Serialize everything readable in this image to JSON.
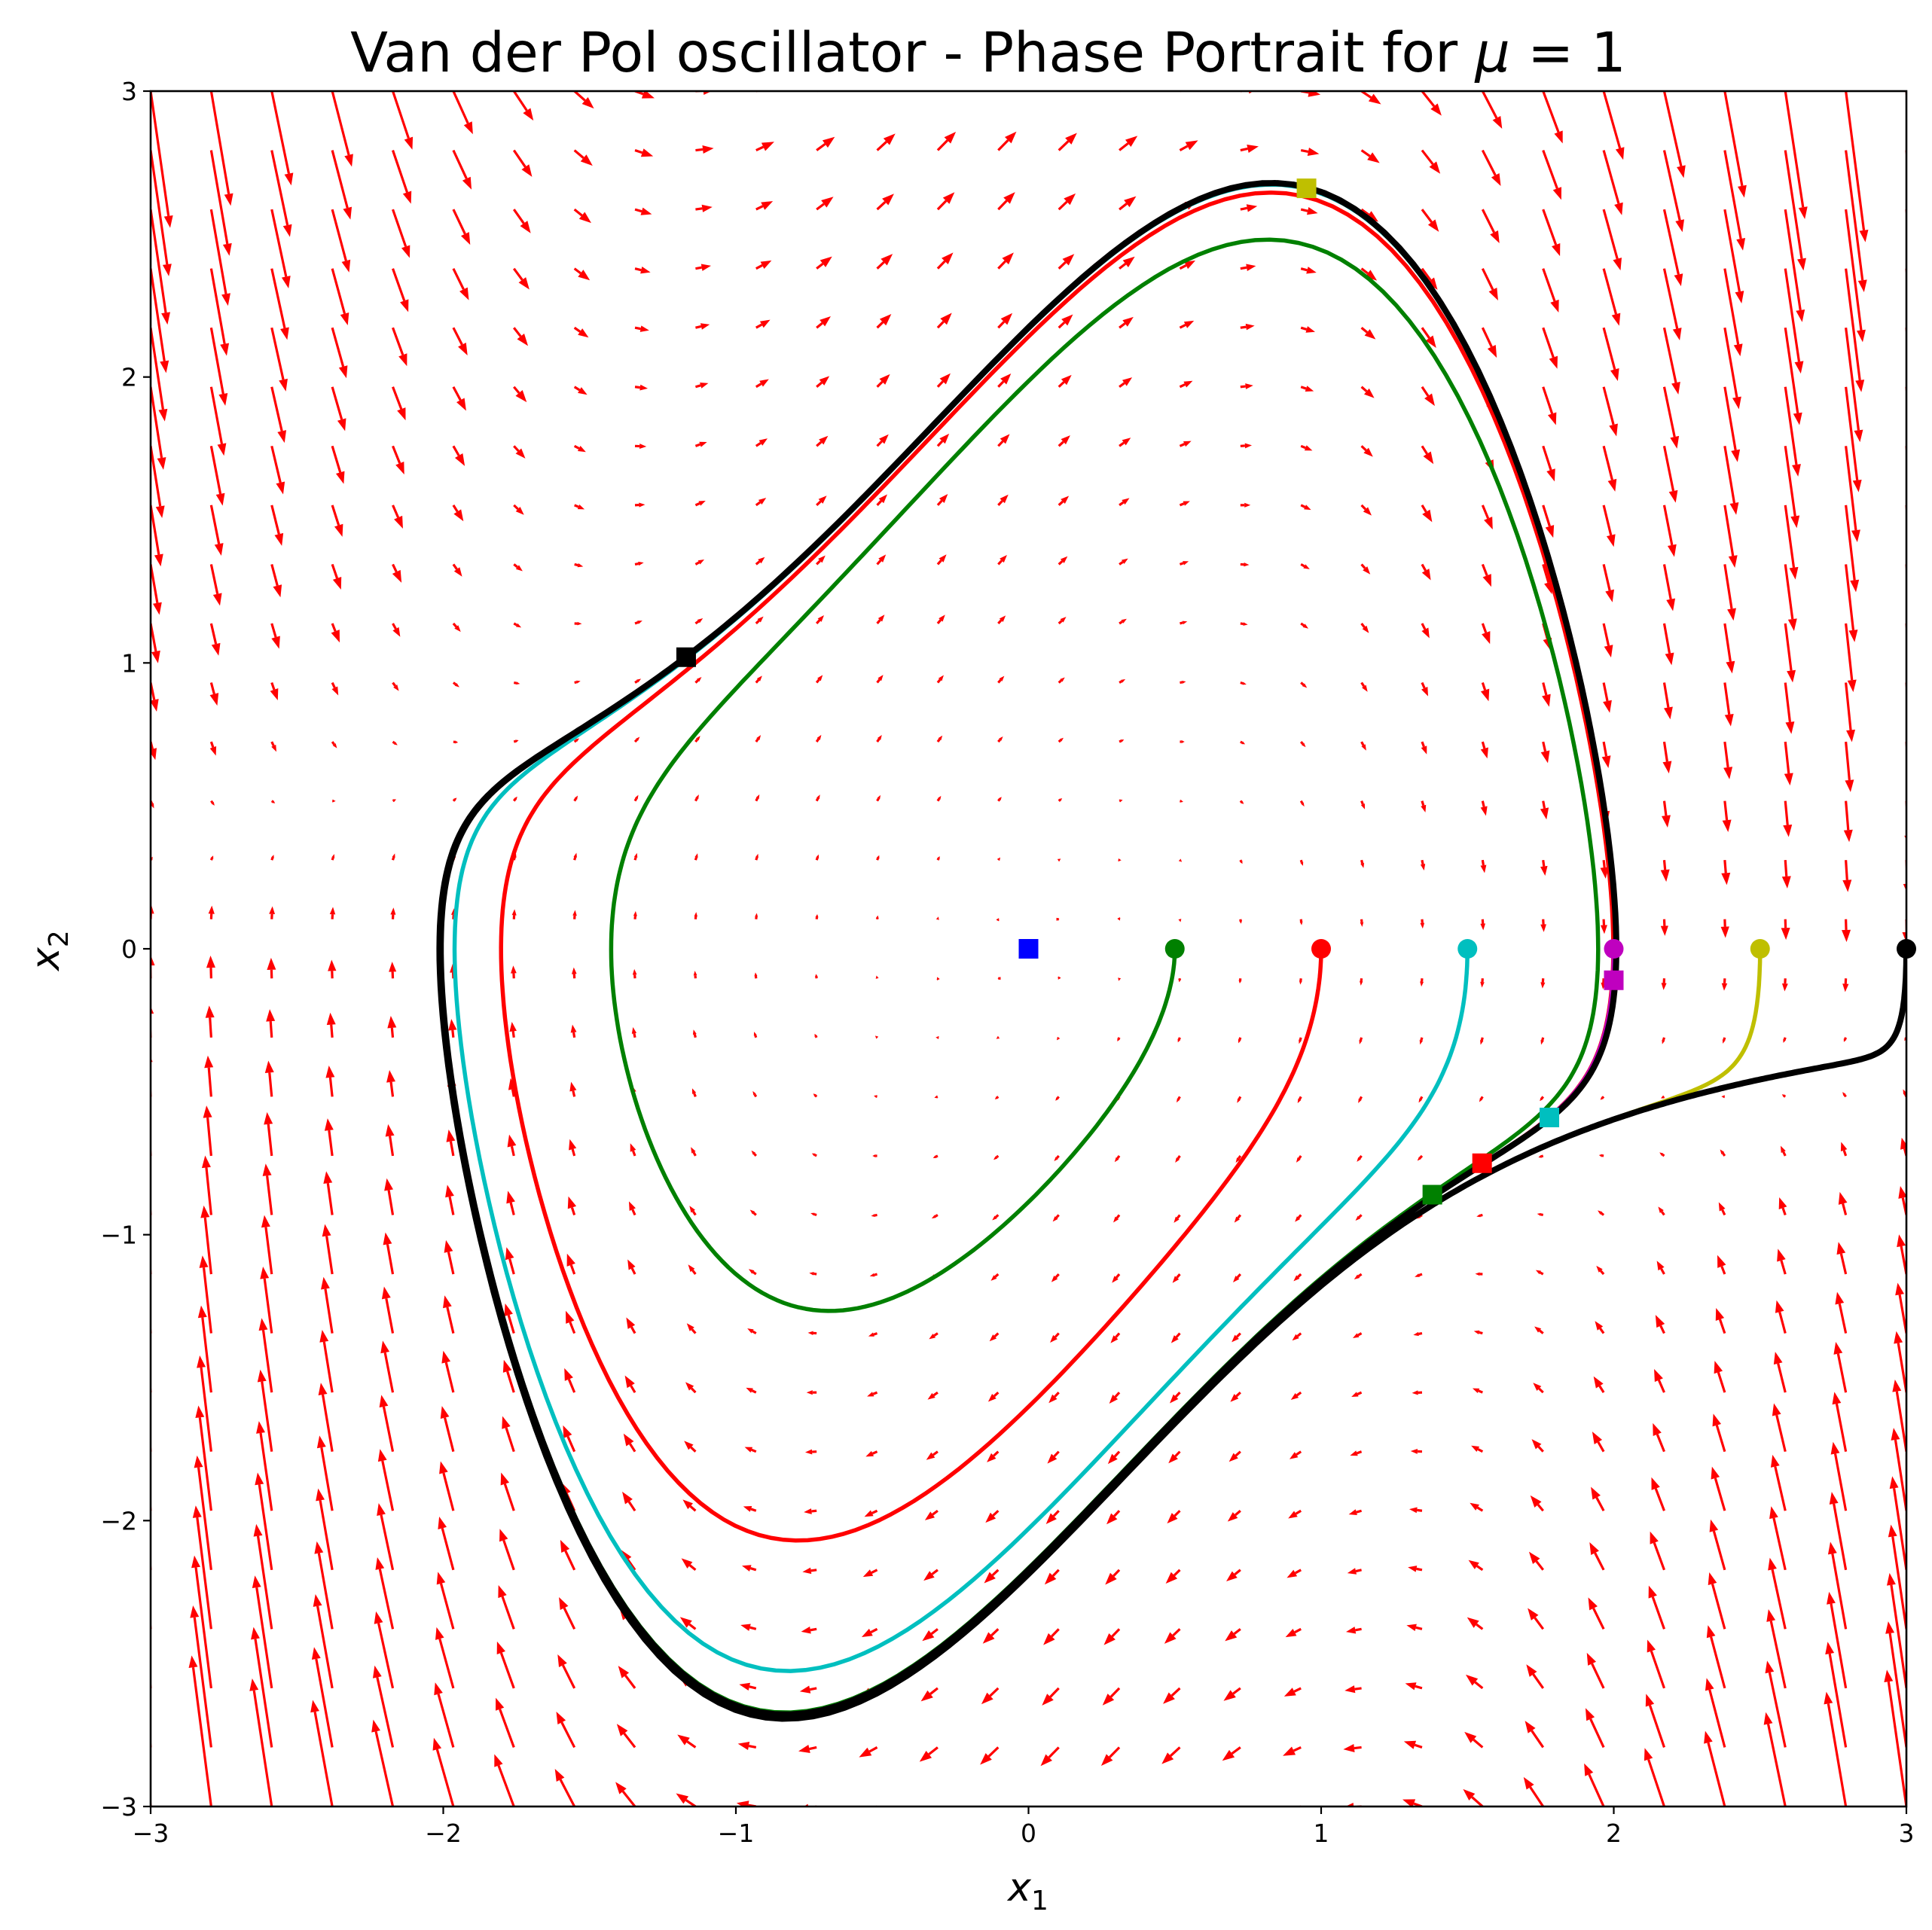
{
  "chart_data": {
    "type": "phase-portrait",
    "title": "Van der Pol oscillator - Phase Portrait for μ = 1",
    "title_parts": {
      "prefix": "Van der Pol oscillator - Phase Portrait for ",
      "symbol": "μ",
      "suffix": " = 1"
    },
    "xlabel": {
      "base": "x",
      "sub": "1"
    },
    "ylabel": {
      "base": "x",
      "sub": "2"
    },
    "mu": 1,
    "xlim": [
      -3,
      3
    ],
    "ylim": [
      -3,
      3
    ],
    "xticks": [
      -3,
      -2,
      -1,
      0,
      1,
      2,
      3
    ],
    "yticks": [
      -3,
      -2,
      -1,
      0,
      1,
      2,
      3
    ],
    "tick_labels_x": [
      "−3",
      "−2",
      "−1",
      "0",
      "1",
      "2",
      "3"
    ],
    "tick_labels_y": [
      "−3",
      "−2",
      "−1",
      "0",
      "1",
      "2",
      "3"
    ],
    "grid": false,
    "vector_field": {
      "color": "#ff0000",
      "x_range": [
        -3,
        3
      ],
      "y_range": [
        -3,
        3
      ],
      "count": 30
    },
    "trajectories": [
      {
        "color": "#0000ff",
        "start": [
          0,
          0
        ],
        "end": [
          0,
          0
        ],
        "t_end": 20
      },
      {
        "color": "#008000",
        "start": [
          0.5,
          0
        ],
        "end": [
          1.38,
          -0.86
        ],
        "t_end": 20
      },
      {
        "color": "#ff0000",
        "start": [
          1.0,
          0
        ],
        "end": [
          1.55,
          -0.75
        ],
        "t_end": 20
      },
      {
        "color": "#00bfbf",
        "start": [
          1.5,
          0
        ],
        "end": [
          1.78,
          -0.59
        ],
        "t_end": 20
      },
      {
        "color": "#bf00bf",
        "start": [
          2.0,
          0
        ],
        "end": [
          2.0,
          -0.11
        ],
        "t_end": 20
      },
      {
        "color": "#bfbf00",
        "start": [
          2.5,
          0
        ],
        "end": [
          0.95,
          2.66
        ],
        "t_end": 20
      },
      {
        "color": "#000000",
        "start": [
          3.0,
          0
        ],
        "end": [
          -1.17,
          1.02
        ],
        "t_end": 20
      }
    ]
  }
}
